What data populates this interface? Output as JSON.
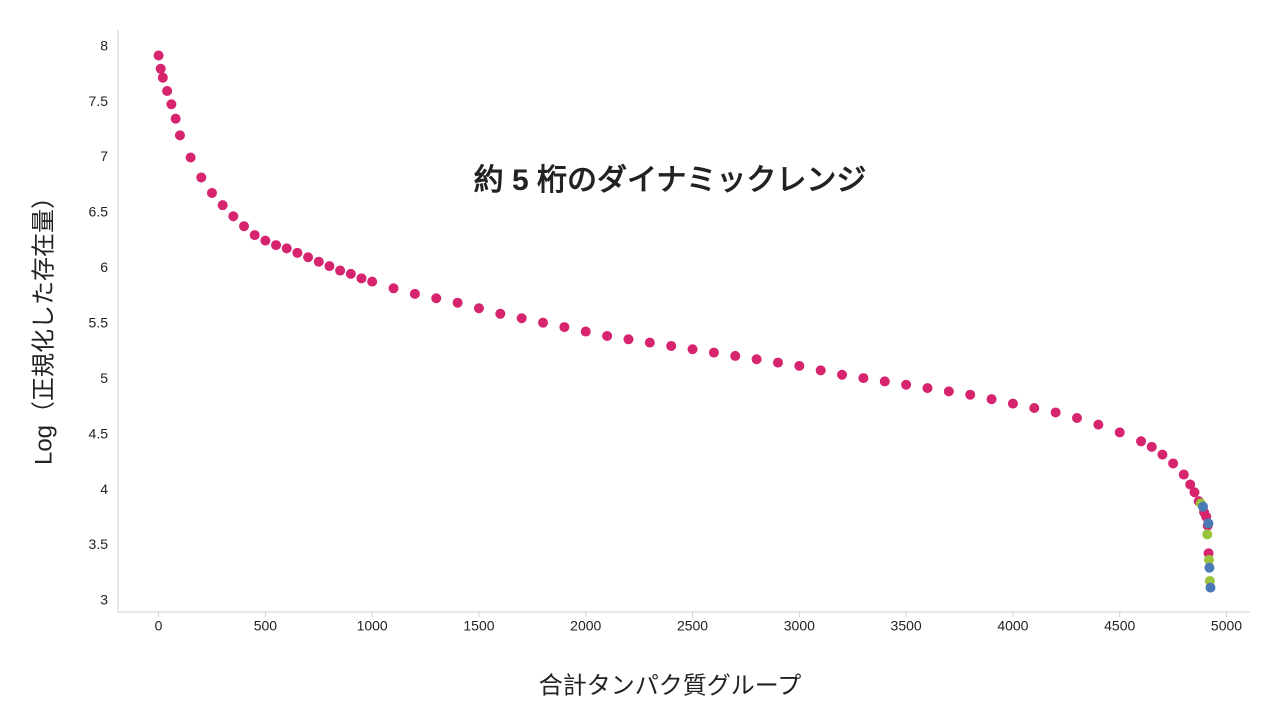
{
  "chart_data": {
    "type": "scatter",
    "title": "約 5 桁のダイナミックレンジ",
    "x_label": "合計タンパク質グループ",
    "y_label": "Log（正規化した存在量）",
    "xlim": [
      -190,
      5110
    ],
    "ylim": [
      2.9,
      8.15
    ],
    "xticks": [
      0,
      500,
      1000,
      1500,
      2000,
      2500,
      3000,
      3500,
      4000,
      4500,
      5000
    ],
    "yticks": [
      3,
      3.5,
      4,
      4.5,
      5,
      5.5,
      6,
      6.5,
      7,
      7.5,
      8
    ],
    "grid": false,
    "series": [
      {
        "color": "#d6246e",
        "x": [
          0,
          10,
          20,
          40,
          60,
          80,
          100,
          150,
          200,
          250,
          300,
          350,
          400,
          450,
          500,
          550,
          600,
          650,
          700,
          750,
          800,
          850,
          900,
          950,
          1000,
          1100,
          1200,
          1300,
          1400,
          1500,
          1600,
          1700,
          1800,
          1900,
          2000,
          2100,
          2200,
          2300,
          2400,
          2500,
          2600,
          2700,
          2800,
          2900,
          3000,
          3100,
          3200,
          3300,
          3400,
          3500,
          3600,
          3700,
          3800,
          3900,
          4000,
          4100,
          4200,
          4300,
          4400,
          4500,
          4600,
          4650,
          4700,
          4750,
          4800,
          4830,
          4850,
          4870,
          4895,
          4905,
          4912,
          4916
        ],
        "y": [
          7.92,
          7.8,
          7.72,
          7.6,
          7.48,
          7.35,
          7.2,
          7.0,
          6.82,
          6.68,
          6.57,
          6.47,
          6.38,
          6.3,
          6.25,
          6.21,
          6.18,
          6.14,
          6.1,
          6.06,
          6.02,
          5.98,
          5.95,
          5.91,
          5.88,
          5.82,
          5.77,
          5.73,
          5.69,
          5.64,
          5.59,
          5.55,
          5.51,
          5.47,
          5.43,
          5.39,
          5.36,
          5.33,
          5.3,
          5.27,
          5.24,
          5.21,
          5.18,
          5.15,
          5.12,
          5.08,
          5.04,
          5.01,
          4.98,
          4.95,
          4.92,
          4.89,
          4.86,
          4.82,
          4.78,
          4.74,
          4.7,
          4.65,
          4.59,
          4.52,
          4.44,
          4.39,
          4.32,
          4.24,
          4.14,
          4.05,
          3.98,
          3.9,
          3.8,
          3.76,
          3.68,
          3.43
        ]
      },
      {
        "color": "#9bc43c",
        "x": [
          4880,
          4910,
          4918,
          4922
        ],
        "y": [
          3.88,
          3.6,
          3.37,
          3.18
        ]
      },
      {
        "color": "#4a7ab5",
        "x": [
          4890,
          4915,
          4920,
          4925
        ],
        "y": [
          3.85,
          3.7,
          3.3,
          3.12
        ]
      }
    ]
  }
}
